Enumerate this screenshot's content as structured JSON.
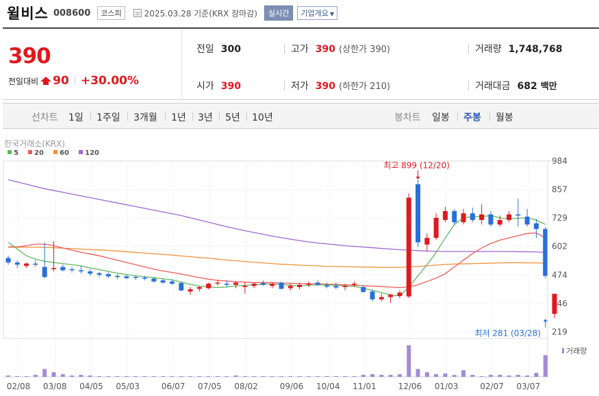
{
  "header": {
    "name": "윌비스",
    "code": "008600",
    "market": "코스피",
    "date_text": "2025.03.28 기준(KRX 장마감)",
    "realtime_label": "실시간",
    "company_label": "기업개요"
  },
  "quote": {
    "price": "390",
    "change_label": "전일대비",
    "change_amount": "90",
    "change_percent": "+30.00%",
    "prev_close_label": "전일",
    "prev_close": "300",
    "high_label": "고가",
    "high": "390",
    "upper_limit_label": "(상한가",
    "upper_limit": "390",
    "upper_limit_close": ")",
    "volume_label": "거래량",
    "volume": "1,748,768",
    "open_label": "시가",
    "open": "390",
    "low_label": "저가",
    "low": "390",
    "lower_limit_label": "(하한가",
    "lower_limit": "210",
    "lower_limit_close": ")",
    "turnover_label": "거래대금",
    "turnover": "682",
    "turnover_unit": "백만"
  },
  "tabs": {
    "line_label": "선차트",
    "line_tabs": [
      "1일",
      "1주일",
      "3개월",
      "1년",
      "3년",
      "5년",
      "10년"
    ],
    "candle_label": "봉차트",
    "candle_tabs": [
      "일봉",
      "주봉",
      "월봉"
    ],
    "active_candle": "주봉"
  },
  "chart_data": {
    "type": "candlestick",
    "source_label": "한국거래소(KRX)",
    "legend": [
      {
        "name": "5",
        "color": "#5cb85c"
      },
      {
        "name": "20",
        "color": "#f05a5a"
      },
      {
        "name": "60",
        "color": "#f0923a"
      },
      {
        "name": "120",
        "color": "#a066d0"
      }
    ],
    "y_ticks": [
      984,
      857,
      729,
      602,
      474,
      346,
      219
    ],
    "ylim": [
      190,
      984
    ],
    "x_ticks": [
      {
        "label": "02/08",
        "i": 0
      },
      {
        "label": "03/08",
        "i": 4
      },
      {
        "label": "04/05",
        "i": 8
      },
      {
        "label": "05/03",
        "i": 12
      },
      {
        "label": "06/07",
        "i": 17
      },
      {
        "label": "07/05",
        "i": 21
      },
      {
        "label": "08/02",
        "i": 25
      },
      {
        "label": "09/06",
        "i": 30
      },
      {
        "label": "10/04",
        "i": 34
      },
      {
        "label": "11/01",
        "i": 38
      },
      {
        "label": "12/06",
        "i": 43
      },
      {
        "label": "01/03",
        "i": 47
      },
      {
        "label": "02/07",
        "i": 52
      },
      {
        "label": "03/07",
        "i": 56
      }
    ],
    "annotations": {
      "high_text": "최고 899 (12/20)",
      "high_value": 899,
      "high_index": 45,
      "low_text": "최저 281 (03/28)",
      "low_value": 281,
      "low_index": 59
    },
    "volume_label": "거래량",
    "candles": [
      [
        550,
        560,
        520,
        530
      ],
      [
        530,
        540,
        505,
        520
      ],
      [
        515,
        530,
        505,
        525
      ],
      [
        525,
        540,
        510,
        520
      ],
      [
        510,
        620,
        460,
        465
      ],
      [
        500,
        625,
        490,
        505
      ],
      [
        510,
        520,
        490,
        495
      ],
      [
        500,
        510,
        485,
        498
      ],
      [
        495,
        515,
        480,
        490
      ],
      [
        490,
        500,
        470,
        480
      ],
      [
        482,
        488,
        465,
        475
      ],
      [
        478,
        485,
        460,
        468
      ],
      [
        470,
        478,
        455,
        465
      ],
      [
        468,
        475,
        455,
        460
      ],
      [
        465,
        472,
        452,
        462
      ],
      [
        462,
        470,
        450,
        458
      ],
      [
        458,
        465,
        440,
        445
      ],
      [
        450,
        458,
        435,
        440
      ],
      [
        445,
        455,
        430,
        435
      ],
      [
        438,
        445,
        400,
        405
      ],
      [
        400,
        420,
        385,
        410
      ],
      [
        412,
        425,
        400,
        420
      ],
      [
        415,
        440,
        410,
        435
      ],
      [
        438,
        450,
        425,
        440
      ],
      [
        435,
        450,
        420,
        430
      ],
      [
        430,
        445,
        415,
        440
      ],
      [
        420,
        440,
        390,
        425
      ],
      [
        425,
        440,
        415,
        435
      ],
      [
        438,
        450,
        425,
        430
      ],
      [
        425,
        440,
        415,
        435
      ],
      [
        440,
        445,
        410,
        412
      ],
      [
        415,
        435,
        405,
        425
      ],
      [
        420,
        440,
        410,
        430
      ],
      [
        430,
        445,
        420,
        435
      ],
      [
        440,
        450,
        425,
        430
      ],
      [
        428,
        440,
        415,
        422
      ],
      [
        425,
        440,
        410,
        418
      ],
      [
        420,
        435,
        405,
        425
      ],
      [
        430,
        445,
        420,
        435
      ],
      [
        420,
        430,
        395,
        398
      ],
      [
        400,
        410,
        355,
        365
      ],
      [
        365,
        390,
        355,
        375
      ],
      [
        375,
        390,
        350,
        385
      ],
      [
        380,
        405,
        370,
        395
      ],
      [
        378,
        840,
        370,
        820
      ],
      [
        880,
        899,
        600,
        620
      ],
      [
        610,
        660,
        580,
        640
      ],
      [
        640,
        750,
        630,
        730
      ],
      [
        720,
        780,
        710,
        760
      ],
      [
        760,
        770,
        700,
        710
      ],
      [
        710,
        770,
        700,
        750
      ],
      [
        750,
        775,
        710,
        720
      ],
      [
        720,
        790,
        700,
        745
      ],
      [
        745,
        760,
        690,
        700
      ],
      [
        700,
        740,
        690,
        720
      ],
      [
        720,
        760,
        710,
        745
      ],
      [
        745,
        815,
        690,
        740
      ],
      [
        735,
        770,
        690,
        700
      ],
      [
        705,
        725,
        640,
        680
      ],
      [
        680,
        690,
        460,
        470
      ]
    ],
    "last_candle": [
      300,
      390,
      281,
      390
    ],
    "volumes": [
      2,
      1,
      1,
      3,
      12,
      7,
      4,
      2,
      3,
      2,
      1,
      1,
      1,
      1,
      1,
      1,
      1,
      1,
      1,
      1,
      1,
      1,
      1,
      1,
      1,
      2,
      1,
      1,
      1,
      1,
      1,
      1,
      1,
      1,
      1,
      1,
      1,
      1,
      1,
      3,
      4,
      3,
      3,
      4,
      48,
      12,
      7,
      4,
      5,
      3,
      10,
      3,
      1,
      3,
      3,
      2,
      3,
      2,
      6,
      33
    ],
    "ma5": [
      620,
      590,
      560,
      545,
      535,
      530,
      525,
      520,
      515,
      505,
      498,
      490,
      482,
      476,
      470,
      466,
      462,
      457,
      452,
      442,
      432,
      425,
      420,
      418,
      420,
      425,
      428,
      430,
      432,
      434,
      432,
      428,
      426,
      428,
      430,
      430,
      428,
      425,
      423,
      415,
      405,
      395,
      385,
      380,
      420,
      470,
      520,
      575,
      640,
      700,
      730,
      735,
      735,
      740,
      730,
      725,
      728,
      730,
      720,
      700
    ],
    "ma20": [
      600,
      600,
      605,
      612,
      612,
      605,
      595,
      585,
      575,
      568,
      560,
      550,
      540,
      530,
      520,
      510,
      500,
      492,
      485,
      478,
      470,
      462,
      455,
      450,
      447,
      444,
      442,
      440,
      440,
      440,
      438,
      437,
      436,
      435,
      434,
      433,
      432,
      430,
      428,
      426,
      424,
      422,
      420,
      418,
      420,
      430,
      445,
      460,
      480,
      510,
      540,
      570,
      595,
      615,
      630,
      640,
      650,
      660,
      662,
      640
    ],
    "ma60": [
      598,
      598,
      598,
      598,
      597,
      596,
      594,
      592,
      590,
      588,
      586,
      584,
      581,
      578,
      575,
      572,
      569,
      566,
      563,
      559,
      556,
      552,
      549,
      545,
      541,
      538,
      534,
      531,
      528,
      525,
      522,
      520,
      518,
      516,
      515,
      513,
      512,
      511,
      510,
      509,
      509,
      508,
      508,
      508,
      510,
      512,
      515,
      518,
      521,
      523,
      524,
      525,
      526,
      527,
      528,
      529,
      529,
      528,
      528,
      527
    ],
    "ma120": [
      900,
      890,
      880,
      870,
      860,
      852,
      844,
      836,
      828,
      820,
      812,
      804,
      796,
      788,
      780,
      772,
      764,
      756,
      748,
      740,
      730,
      720,
      710,
      700,
      690,
      681,
      672,
      664,
      656,
      648,
      641,
      634,
      628,
      622,
      617,
      613,
      609,
      605,
      602,
      599,
      596,
      593,
      590,
      587,
      585,
      583,
      581,
      580,
      579,
      579,
      579,
      579,
      579,
      579,
      579,
      579,
      578,
      578,
      577,
      575
    ]
  }
}
